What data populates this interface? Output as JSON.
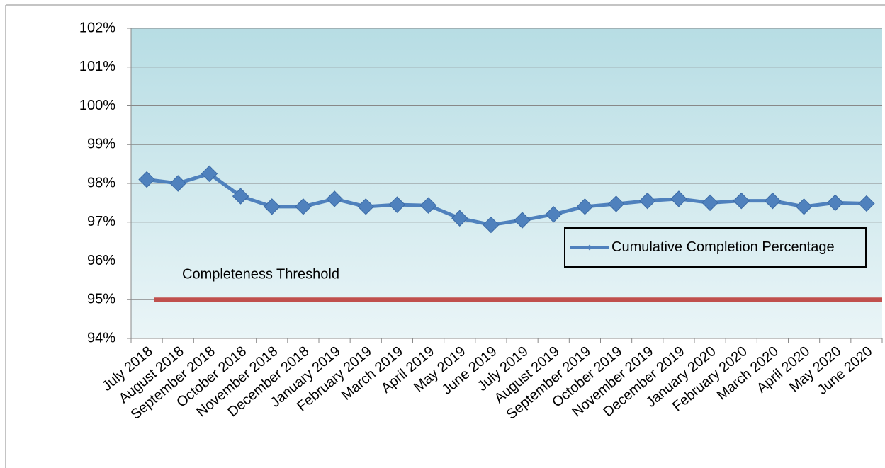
{
  "chart_data": {
    "type": "line",
    "categories": [
      "July 2018",
      "August 2018",
      "September 2018",
      "October 2018",
      "November 2018",
      "December 2018",
      "January 2019",
      "February 2019",
      "March 2019",
      "April 2019",
      "May 2019",
      "June 2019",
      "July 2019",
      "August 2019",
      "September 2019",
      "October 2019",
      "November 2019",
      "December 2019",
      "January 2020",
      "February 2020",
      "March 2020",
      "April 2020",
      "May 2020",
      "June 2020"
    ],
    "series": [
      {
        "name": "Cumulative Completion Percentage",
        "color": "#4f81bd",
        "values": [
          98.1,
          98.0,
          98.25,
          97.67,
          97.4,
          97.4,
          97.6,
          97.4,
          97.45,
          97.43,
          97.1,
          96.93,
          97.05,
          97.2,
          97.4,
          97.47,
          97.55,
          97.6,
          97.5,
          97.55,
          97.55,
          97.4,
          97.5,
          97.48
        ]
      }
    ],
    "threshold": {
      "label": "Completeness Threshold",
      "value": 95,
      "color": "#c0504d"
    },
    "ylim": [
      94,
      102
    ],
    "yticks": [
      {
        "value": 94,
        "label": "94%"
      },
      {
        "value": 95,
        "label": "95%"
      },
      {
        "value": 96,
        "label": "96%"
      },
      {
        "value": 97,
        "label": "97%"
      },
      {
        "value": 98,
        "label": "98%"
      },
      {
        "value": 99,
        "label": "99%"
      },
      {
        "value": 100,
        "label": "100%"
      },
      {
        "value": 101,
        "label": "101%"
      },
      {
        "value": 102,
        "label": "102%"
      }
    ],
    "grid": true,
    "legend": "right"
  }
}
